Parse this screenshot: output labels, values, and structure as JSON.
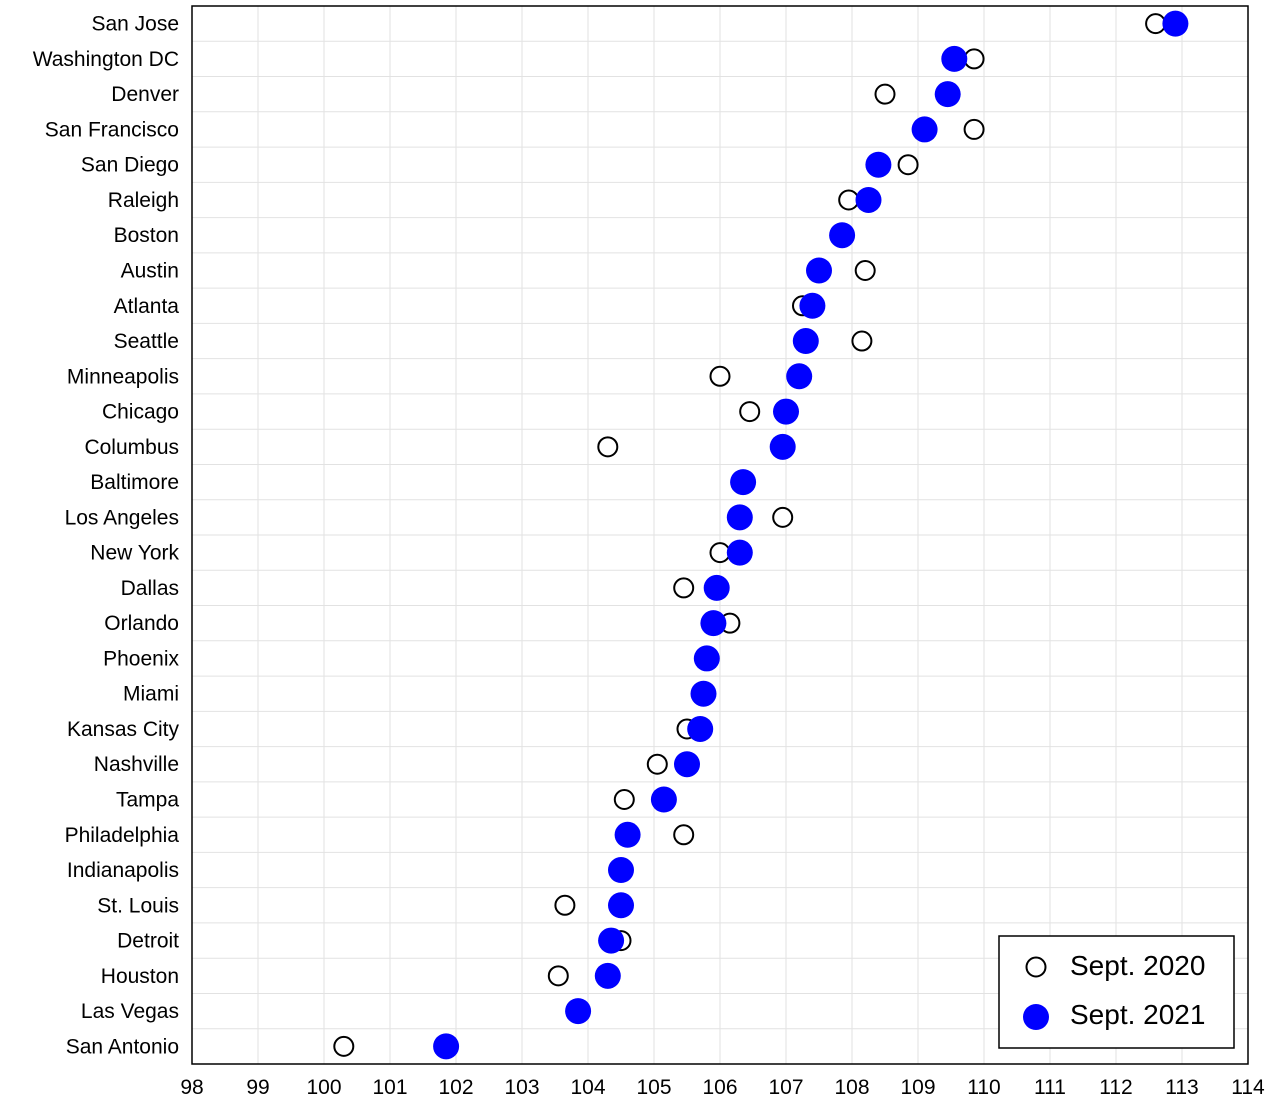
{
  "chart_data": {
    "type": "scatter",
    "orientation": "horizontal-dot-plot",
    "categories": [
      "San Jose",
      "Washington DC",
      "Denver",
      "San Francisco",
      "San Diego",
      "Raleigh",
      "Boston",
      "Austin",
      "Atlanta",
      "Seattle",
      "Minneapolis",
      "Chicago",
      "Columbus",
      "Baltimore",
      "Los Angeles",
      "New York",
      "Dallas",
      "Orlando",
      "Phoenix",
      "Miami",
      "Kansas City",
      "Nashville",
      "Tampa",
      "Philadelphia",
      "Indianapolis",
      "St. Louis",
      "Detroit",
      "Houston",
      "Las Vegas",
      "San Antonio"
    ],
    "series": [
      {
        "name": "Sept. 2020",
        "marker": "hollow-circle",
        "color": "#000000",
        "values": [
          112.6,
          109.85,
          108.5,
          109.85,
          108.85,
          107.95,
          107.85,
          108.2,
          107.25,
          108.15,
          106.0,
          106.45,
          104.3,
          106.35,
          106.95,
          106.0,
          105.45,
          106.15,
          105.8,
          105.75,
          105.5,
          105.05,
          104.55,
          105.45,
          104.5,
          103.65,
          104.5,
          103.55,
          103.85,
          100.3
        ]
      },
      {
        "name": "Sept. 2021",
        "marker": "filled-circle",
        "color": "#0000ff",
        "values": [
          112.9,
          109.55,
          109.45,
          109.1,
          108.4,
          108.25,
          107.85,
          107.5,
          107.4,
          107.3,
          107.2,
          107.0,
          106.95,
          106.35,
          106.3,
          106.3,
          105.95,
          105.9,
          105.8,
          105.75,
          105.7,
          105.5,
          105.15,
          104.6,
          104.5,
          104.5,
          104.35,
          104.3,
          103.85,
          101.85
        ]
      }
    ],
    "xlim": [
      98,
      114
    ],
    "x_ticks": [
      "98",
      "99",
      "100",
      "101",
      "102",
      "103",
      "104",
      "105",
      "106",
      "107",
      "108",
      "109",
      "110",
      "111",
      "112",
      "113",
      "114"
    ],
    "title": "",
    "xlabel": "",
    "ylabel": "",
    "grid": true,
    "legend_position": "bottom-right"
  }
}
